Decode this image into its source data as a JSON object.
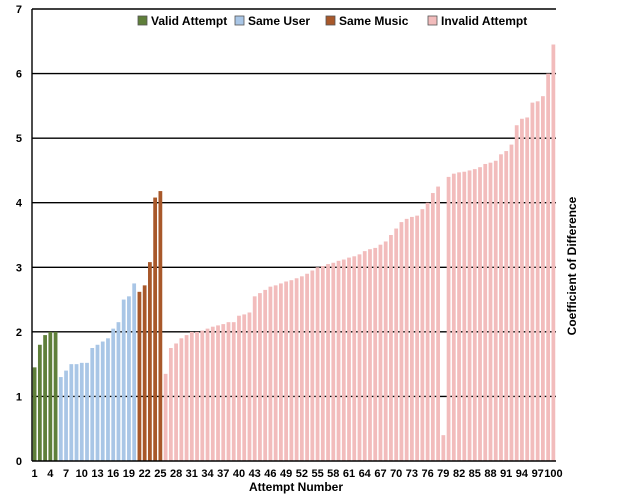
{
  "chart_data": {
    "type": "bar",
    "title": "",
    "xlabel": "Attempt Number",
    "ylabel": "Coefficient of Difference",
    "ylim": [
      0,
      7
    ],
    "y_ticks": [
      "0",
      "1",
      "2",
      "3",
      "4",
      "5",
      "6",
      "7"
    ],
    "x_tick_labels": [
      "1",
      "4",
      "7",
      "10",
      "13",
      "16",
      "19",
      "22",
      "25",
      "28",
      "31",
      "34",
      "37",
      "40",
      "43",
      "46",
      "49",
      "52",
      "55",
      "58",
      "61",
      "64",
      "67",
      "70",
      "73",
      "76",
      "79",
      "82",
      "85",
      "88",
      "91",
      "94",
      "97",
      "100"
    ],
    "grid": "horizontal",
    "legend_position": "top",
    "categories": [
      1,
      2,
      3,
      4,
      5,
      6,
      7,
      8,
      9,
      10,
      11,
      12,
      13,
      14,
      15,
      16,
      17,
      18,
      19,
      20,
      21,
      22,
      23,
      24,
      25,
      26,
      27,
      28,
      29,
      30,
      31,
      32,
      33,
      34,
      35,
      36,
      37,
      38,
      39,
      40,
      41,
      42,
      43,
      44,
      45,
      46,
      47,
      48,
      49,
      50,
      51,
      52,
      53,
      54,
      55,
      56,
      57,
      58,
      59,
      60,
      61,
      62,
      63,
      64,
      65,
      66,
      67,
      68,
      69,
      70,
      71,
      72,
      73,
      74,
      75,
      76,
      77,
      78,
      79,
      80,
      81,
      82,
      83,
      84,
      85,
      86,
      87,
      88,
      89,
      90,
      91,
      92,
      93,
      94,
      95,
      96,
      97,
      98,
      99,
      100
    ],
    "series": [
      {
        "name": "Valid Attempt",
        "color": "#5f7f3a",
        "x": [
          1,
          2,
          3,
          4,
          5
        ],
        "values": [
          1.45,
          1.8,
          1.95,
          2.0,
          2.0
        ]
      },
      {
        "name": "Same User",
        "color": "#a9c6e6",
        "x": [
          6,
          7,
          8,
          9,
          10,
          11,
          12,
          13,
          14,
          15,
          16,
          17,
          18,
          19,
          20
        ],
        "values": [
          1.3,
          1.4,
          1.5,
          1.5,
          1.52,
          1.52,
          1.75,
          1.8,
          1.85,
          1.9,
          2.05,
          2.15,
          2.5,
          2.55,
          2.75
        ]
      },
      {
        "name": "Same Music",
        "color": "#a8582a",
        "x": [
          21,
          22,
          23,
          24,
          25
        ],
        "values": [
          2.62,
          2.72,
          3.08,
          4.08,
          4.18
        ]
      },
      {
        "name": "Invalid Attempt",
        "color": "#f2bcbc",
        "x": [
          26,
          27,
          28,
          29,
          30,
          31,
          32,
          33,
          34,
          35,
          36,
          37,
          38,
          39,
          40,
          41,
          42,
          43,
          44,
          45,
          46,
          47,
          48,
          49,
          50,
          51,
          52,
          53,
          54,
          55,
          56,
          57,
          58,
          59,
          60,
          61,
          62,
          63,
          64,
          65,
          66,
          67,
          68,
          69,
          70,
          71,
          72,
          73,
          74,
          75,
          76,
          77,
          78,
          79,
          80,
          81,
          82,
          83,
          84,
          85,
          86,
          87,
          88,
          89,
          90,
          91,
          92,
          93,
          94,
          95,
          96,
          97,
          98,
          99,
          100
        ],
        "values": [
          1.35,
          1.75,
          1.82,
          1.9,
          1.95,
          2.0,
          2.0,
          2.02,
          2.05,
          2.08,
          2.1,
          2.12,
          2.15,
          2.15,
          2.25,
          2.27,
          2.3,
          2.55,
          2.6,
          2.65,
          2.7,
          2.72,
          2.75,
          2.78,
          2.8,
          2.83,
          2.86,
          2.9,
          2.95,
          3.0,
          3.02,
          3.05,
          3.07,
          3.1,
          3.12,
          3.15,
          3.17,
          3.2,
          3.25,
          3.28,
          3.3,
          3.35,
          3.4,
          3.5,
          3.6,
          3.7,
          3.75,
          3.78,
          3.8,
          3.9,
          4.0,
          4.15,
          4.25,
          0.4,
          4.4,
          4.45,
          4.47,
          4.48,
          4.5,
          4.52,
          4.55,
          4.6,
          4.62,
          4.65,
          4.75,
          4.8,
          4.9,
          5.2,
          5.3,
          5.32,
          5.55,
          5.57,
          5.65,
          6.0,
          6.45
        ]
      }
    ]
  }
}
